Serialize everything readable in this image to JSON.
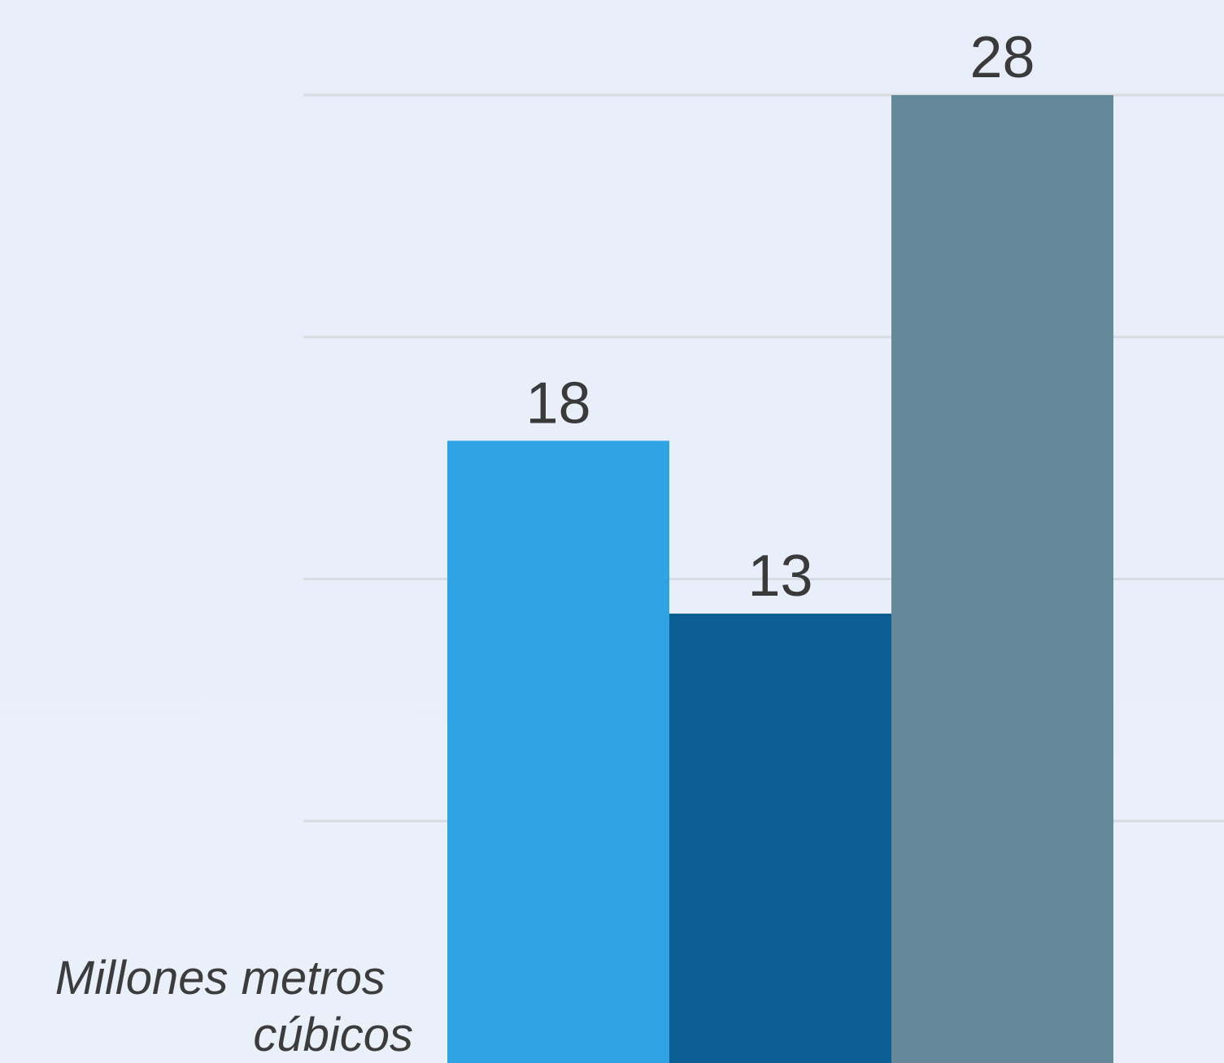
{
  "chart_data": {
    "type": "bar",
    "categories": [
      "",
      "",
      ""
    ],
    "values": [
      18,
      13,
      28
    ],
    "colors": [
      "#2fa4e5",
      "#0b5e91",
      "#648a9a"
    ],
    "ylabel": "Millones metros cúbicos",
    "ylim": [
      0,
      28
    ],
    "grid": true,
    "grid_values": [
      28,
      21,
      14,
      7
    ]
  }
}
